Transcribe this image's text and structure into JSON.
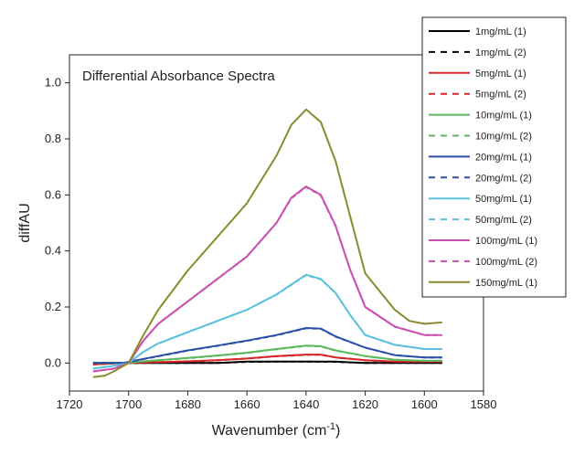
{
  "chart_data": {
    "type": "line",
    "title": "Differential Absorbance Spectra",
    "xlabel_main": "Wavenumber (cm",
    "xlabel_sup": "-1",
    "xlabel_tail": ")",
    "ylabel": "diffAU",
    "xlim": [
      1720,
      1580
    ],
    "ylim": [
      -0.1,
      1.1
    ],
    "x_reversed": true,
    "xticks": [
      1720,
      1700,
      1680,
      1660,
      1640,
      1620,
      1600,
      1580
    ],
    "yticks": [
      0.0,
      0.2,
      0.4,
      0.6,
      0.8,
      1.0
    ],
    "ytick_labels": [
      "0.0",
      "0.2",
      "0.4",
      "0.6",
      "0.8",
      "1.0"
    ],
    "legend_position": "top-right",
    "grid": false,
    "series": [
      {
        "name": "1mg/mL (1)",
        "color": "#000000",
        "dash": "solid",
        "x": [
          1712,
          1702,
          1690,
          1670,
          1660,
          1650,
          1640,
          1630,
          1620,
          1610,
          1600,
          1594
        ],
        "y": [
          0.0,
          0.0,
          0.0,
          0.0,
          0.005,
          0.005,
          0.005,
          0.005,
          0.0,
          0.0,
          0.0,
          0.0
        ]
      },
      {
        "name": "1mg/mL (2)",
        "color": "#000000",
        "dash": "dashed",
        "x": [
          1712,
          1702,
          1690,
          1670,
          1660,
          1650,
          1640,
          1630,
          1620,
          1610,
          1600,
          1594
        ],
        "y": [
          0.0,
          0.0,
          0.0,
          0.0,
          0.004,
          0.005,
          0.005,
          0.004,
          0.0,
          0.0,
          0.0,
          0.0
        ]
      },
      {
        "name": "5mg/mL (1)",
        "color": "#d62728",
        "dash": "solid",
        "x": [
          1712,
          1702,
          1690,
          1680,
          1670,
          1660,
          1650,
          1640,
          1635,
          1630,
          1620,
          1610,
          1600,
          1594
        ],
        "y": [
          -0.005,
          0.0,
          0.003,
          0.006,
          0.01,
          0.016,
          0.025,
          0.03,
          0.03,
          0.02,
          0.01,
          0.005,
          0.005,
          0.005
        ]
      },
      {
        "name": "5mg/mL (2)",
        "color": "#d62728",
        "dash": "dashed",
        "x": [
          1712,
          1702,
          1690,
          1680,
          1670,
          1660,
          1650,
          1640,
          1635,
          1630,
          1620,
          1610,
          1600,
          1594
        ],
        "y": [
          -0.005,
          0.0,
          0.003,
          0.006,
          0.01,
          0.016,
          0.024,
          0.029,
          0.029,
          0.02,
          0.01,
          0.005,
          0.005,
          0.005
        ]
      },
      {
        "name": "10mg/mL (1)",
        "color": "#5cb85c",
        "dash": "solid",
        "x": [
          1712,
          1702,
          1690,
          1680,
          1670,
          1660,
          1650,
          1640,
          1635,
          1630,
          1620,
          1610,
          1600,
          1594
        ],
        "y": [
          0.0,
          0.0,
          0.01,
          0.018,
          0.027,
          0.037,
          0.05,
          0.062,
          0.06,
          0.045,
          0.025,
          0.012,
          0.008,
          0.008
        ]
      },
      {
        "name": "10mg/mL (2)",
        "color": "#5cb85c",
        "dash": "dashed",
        "x": [
          1712,
          1702,
          1690,
          1680,
          1670,
          1660,
          1650,
          1640,
          1635,
          1630,
          1620,
          1610,
          1600,
          1594
        ],
        "y": [
          0.0,
          0.0,
          0.01,
          0.017,
          0.026,
          0.036,
          0.049,
          0.061,
          0.059,
          0.044,
          0.025,
          0.012,
          0.008,
          0.008
        ]
      },
      {
        "name": "20mg/mL (1)",
        "color": "#2b4fa8",
        "dash": "solid",
        "x": [
          1712,
          1702,
          1690,
          1680,
          1670,
          1660,
          1650,
          1640,
          1635,
          1630,
          1620,
          1610,
          1600,
          1594
        ],
        "y": [
          0.0,
          0.0,
          0.025,
          0.045,
          0.062,
          0.08,
          0.1,
          0.125,
          0.123,
          0.095,
          0.055,
          0.028,
          0.02,
          0.02
        ]
      },
      {
        "name": "20mg/mL (2)",
        "color": "#2b4fa8",
        "dash": "dashed",
        "x": [
          1712,
          1702,
          1690,
          1680,
          1670,
          1660,
          1650,
          1640,
          1635,
          1630,
          1620,
          1610,
          1600,
          1594
        ],
        "y": [
          0.0,
          0.0,
          0.024,
          0.044,
          0.061,
          0.079,
          0.099,
          0.124,
          0.122,
          0.094,
          0.055,
          0.028,
          0.02,
          0.02
        ]
      },
      {
        "name": "50mg/mL (1)",
        "color": "#5bc0de",
        "dash": "solid",
        "x": [
          1712,
          1705,
          1700,
          1695,
          1690,
          1680,
          1670,
          1660,
          1650,
          1645,
          1640,
          1635,
          1630,
          1625,
          1620,
          1610,
          1600,
          1594
        ],
        "y": [
          -0.02,
          -0.01,
          0.0,
          0.04,
          0.07,
          0.11,
          0.15,
          0.19,
          0.245,
          0.28,
          0.315,
          0.3,
          0.25,
          0.17,
          0.1,
          0.065,
          0.05,
          0.05
        ]
      },
      {
        "name": "50mg/mL (2)",
        "color": "#5bc0de",
        "dash": "dashed",
        "x": [
          1712,
          1705,
          1700,
          1695,
          1690,
          1680,
          1670,
          1660,
          1650,
          1645,
          1640,
          1635,
          1630,
          1625,
          1620,
          1610,
          1600,
          1594
        ],
        "y": [
          -0.02,
          -0.01,
          0.0,
          0.04,
          0.07,
          0.11,
          0.15,
          0.19,
          0.244,
          0.279,
          0.313,
          0.299,
          0.249,
          0.17,
          0.1,
          0.065,
          0.05,
          0.05
        ]
      },
      {
        "name": "100mg/mL (1)",
        "color": "#c94fb3",
        "dash": "solid",
        "x": [
          1712,
          1705,
          1700,
          1695,
          1690,
          1680,
          1670,
          1660,
          1650,
          1645,
          1640,
          1635,
          1630,
          1625,
          1620,
          1610,
          1600,
          1594
        ],
        "y": [
          -0.03,
          -0.02,
          0.0,
          0.08,
          0.14,
          0.22,
          0.3,
          0.38,
          0.5,
          0.59,
          0.63,
          0.6,
          0.49,
          0.33,
          0.2,
          0.13,
          0.1,
          0.1
        ]
      },
      {
        "name": "100mg/mL (2)",
        "color": "#c94fb3",
        "dash": "dashed",
        "x": [
          1712,
          1705,
          1700,
          1695,
          1690,
          1680,
          1670,
          1660,
          1650,
          1645,
          1640,
          1635,
          1630,
          1625,
          1620,
          1610,
          1600,
          1594
        ],
        "y": [
          -0.03,
          -0.02,
          0.0,
          0.08,
          0.14,
          0.22,
          0.3,
          0.38,
          0.5,
          0.588,
          0.628,
          0.598,
          0.488,
          0.33,
          0.2,
          0.13,
          0.1,
          0.1
        ]
      },
      {
        "name": "150mg/mL (1)",
        "color": "#8a8a2e",
        "dash": "solid",
        "x": [
          1712,
          1708,
          1705,
          1700,
          1695,
          1690,
          1680,
          1670,
          1660,
          1650,
          1645,
          1640,
          1635,
          1630,
          1625,
          1620,
          1610,
          1605,
          1600,
          1594
        ],
        "y": [
          -0.05,
          -0.045,
          -0.03,
          0.0,
          0.1,
          0.19,
          0.33,
          0.45,
          0.57,
          0.74,
          0.85,
          0.905,
          0.86,
          0.72,
          0.52,
          0.32,
          0.19,
          0.15,
          0.14,
          0.145
        ]
      }
    ]
  }
}
